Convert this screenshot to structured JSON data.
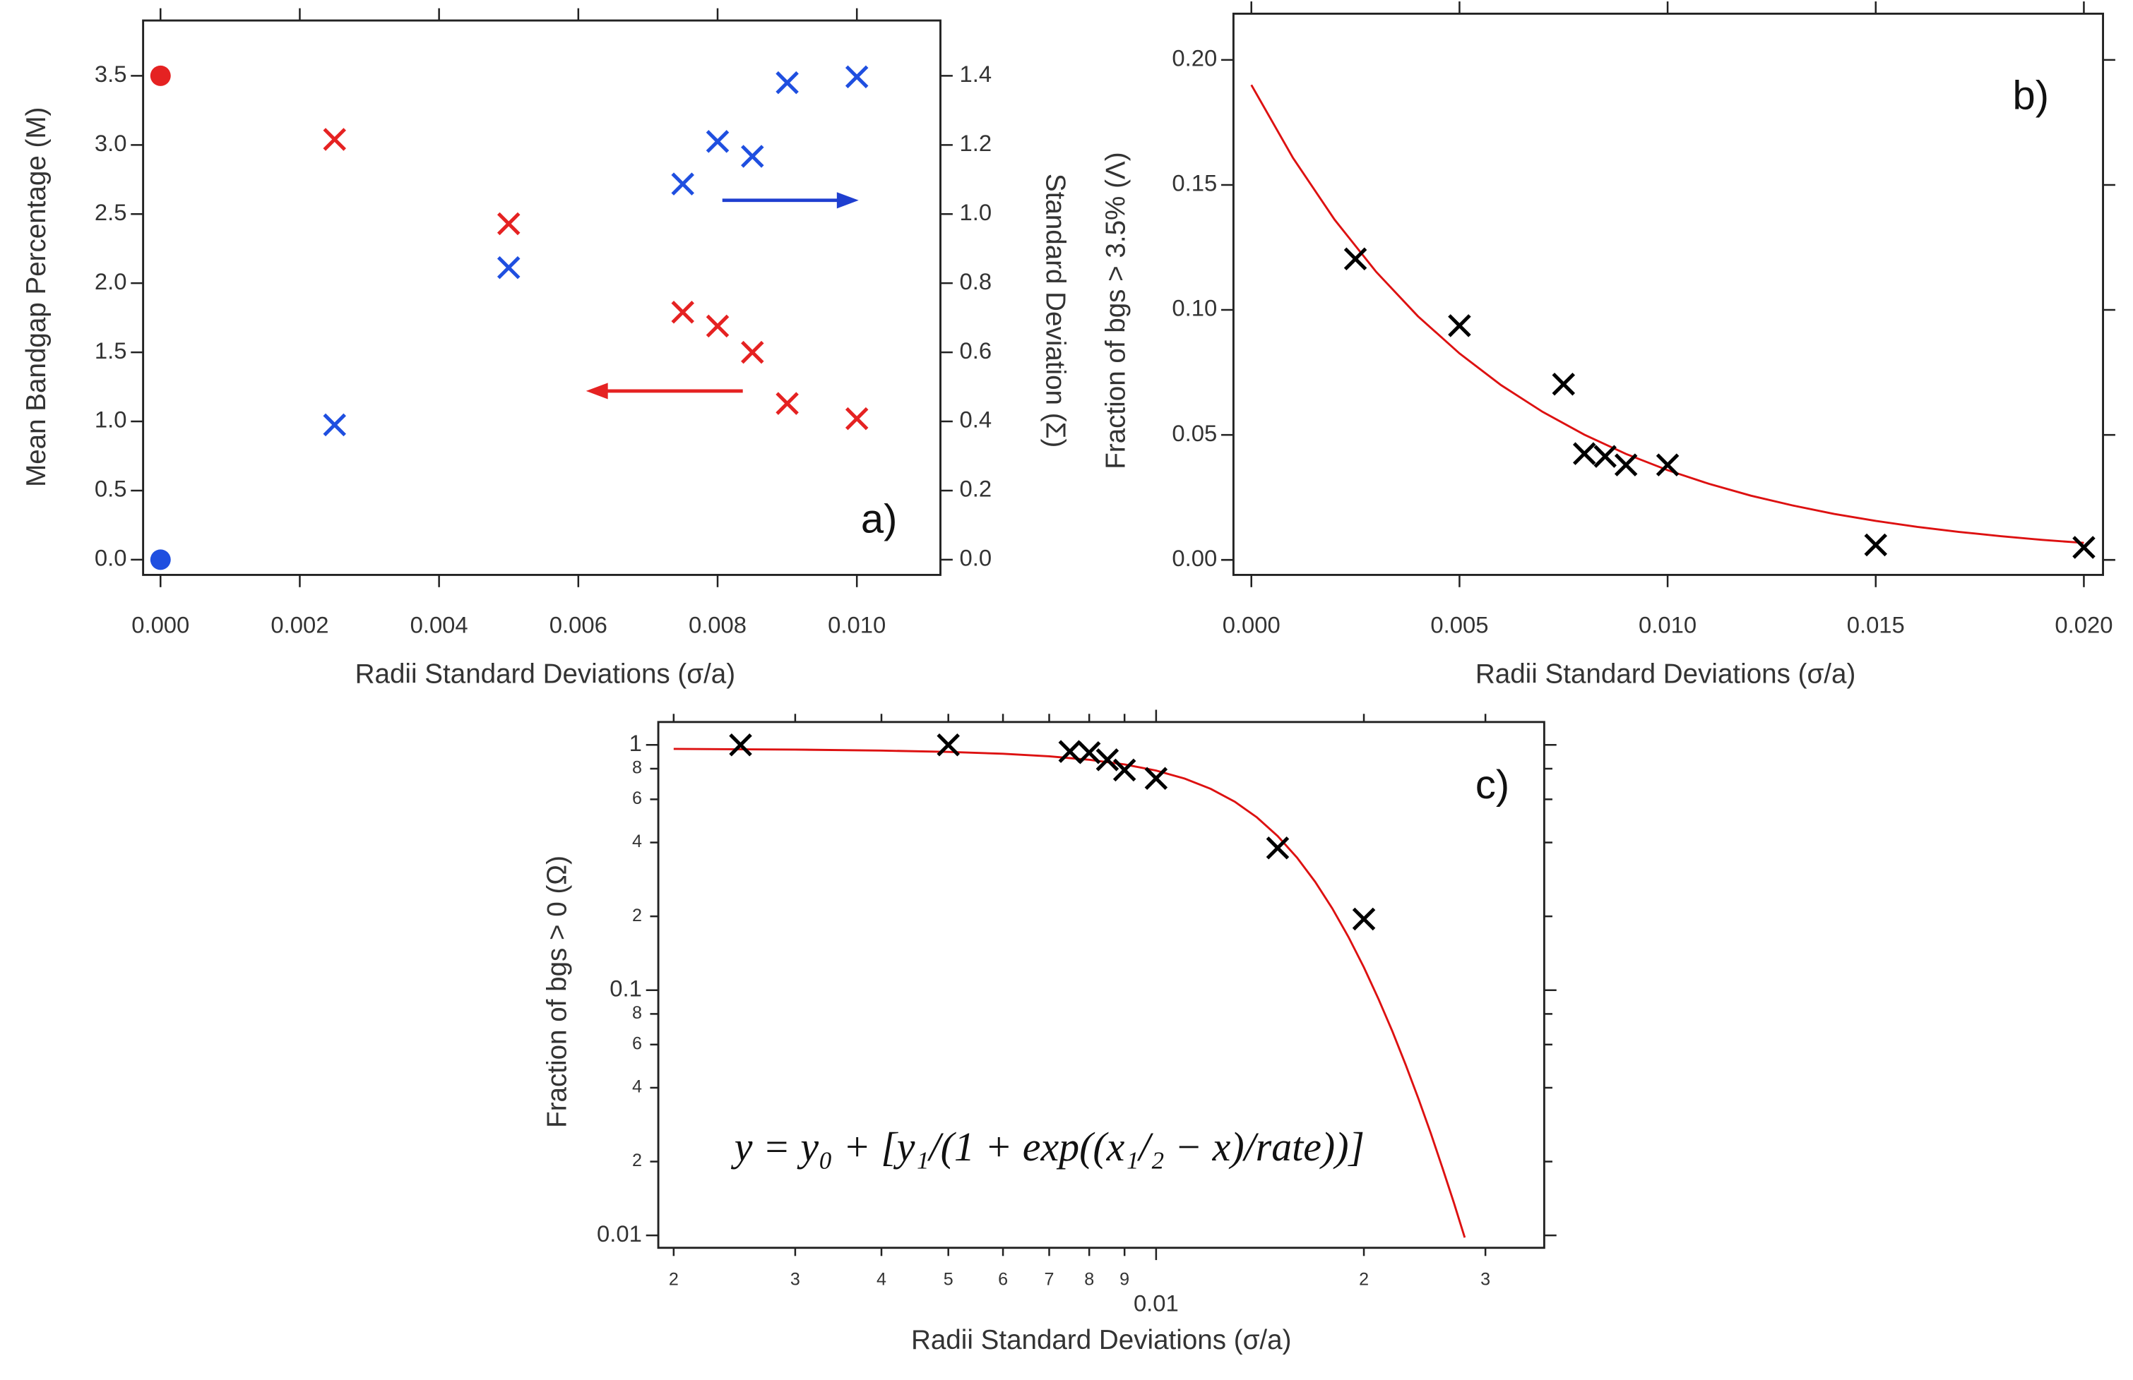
{
  "chart_data": [
    {
      "type": "scatter",
      "panel_label": "a)",
      "xlabel": "Radii Standard Deviations (σ/a)",
      "ylabel": "Mean Bandgap Percentage (M)",
      "y2label": "Standard Deviation (Σ)",
      "xlim": [
        -0.00025,
        0.0112
      ],
      "ylim": [
        -0.11,
        3.9
      ],
      "y2lim": [
        -0.044,
        1.56
      ],
      "xticks": [
        {
          "value": 0,
          "label": "0.000"
        },
        {
          "value": 0.002,
          "label": "0.002"
        },
        {
          "value": 0.004,
          "label": "0.004"
        },
        {
          "value": 0.006,
          "label": "0.006"
        },
        {
          "value": 0.008,
          "label": "0.008"
        },
        {
          "value": 0.01,
          "label": "0.010"
        }
      ],
      "yticks": [
        {
          "value": 0,
          "label": "0.0"
        },
        0.5,
        {
          "value": 1,
          "label": "1.0"
        },
        1.5,
        {
          "value": 2,
          "label": "2.0"
        },
        2.5,
        {
          "value": 3,
          "label": "3.0"
        },
        3.5
      ],
      "y2ticks": [
        {
          "value": 0,
          "label": "0.0"
        },
        0.2,
        0.4,
        0.6,
        0.8,
        {
          "value": 1,
          "label": "1.0"
        },
        1.2,
        1.4
      ],
      "series": [
        {
          "color": "#e52222",
          "marker": "x",
          "x": [
            0.0025,
            0.005,
            0.0075,
            0.008,
            0.0085,
            0.009,
            0.01
          ],
          "values": [
            3.04,
            2.43,
            1.79,
            1.69,
            1.5,
            1.13,
            1.02
          ]
        },
        {
          "color": "#e52222",
          "marker": "circle",
          "x": [
            0
          ],
          "values": [
            3.5
          ]
        },
        {
          "color": "#1f4fe0",
          "marker": "x",
          "axis": "y2",
          "x": [
            0.0025,
            0.005,
            0.0075,
            0.008,
            0.0085,
            0.009,
            0.01
          ],
          "values": [
            0.39,
            0.845,
            1.087,
            1.21,
            1.167,
            1.38,
            1.397
          ]
        },
        {
          "color": "#1f4fe0",
          "marker": "circle",
          "axis": "y2",
          "x": [
            0
          ],
          "values": [
            0
          ]
        }
      ]
    },
    {
      "type": "scatter",
      "panel_label": "b)",
      "xlabel": "Radii Standard Deviations (σ/a)",
      "ylabel": "Fraction of bgs > 3.5% (Λ)",
      "xlim": [
        -0.00043,
        0.02046
      ],
      "ylim": [
        -0.006,
        0.2185
      ],
      "xticks": [
        {
          "value": 0,
          "label": "0.000"
        },
        {
          "value": 0.005,
          "label": "0.005"
        },
        {
          "value": 0.01,
          "label": "0.010"
        },
        {
          "value": 0.015,
          "label": "0.015"
        },
        {
          "value": 0.02,
          "label": "0.020"
        }
      ],
      "yticks": [
        {
          "value": 0,
          "label": "0.00"
        },
        {
          "value": 0.05,
          "label": "0.05"
        },
        {
          "value": 0.1,
          "label": "0.10"
        },
        {
          "value": 0.15,
          "label": "0.15"
        },
        {
          "value": 0.2,
          "label": "0.20"
        }
      ],
      "series": [
        {
          "color": "#dd1111",
          "marker": "line",
          "x": [
            0,
            0.001,
            0.002,
            0.003,
            0.004,
            0.005,
            0.006,
            0.007,
            0.008,
            0.009,
            0.01,
            0.011,
            0.012,
            0.013,
            0.014,
            0.015,
            0.016,
            0.017,
            0.018,
            0.019,
            0.02
          ],
          "values": [
            0.19,
            0.1608,
            0.1361,
            0.1152,
            0.0975,
            0.0826,
            0.0699,
            0.0592,
            0.0501,
            0.0424,
            0.0359,
            0.0304,
            0.0257,
            0.0218,
            0.0184,
            0.0156,
            0.0132,
            0.0112,
            0.0095,
            0.008,
            0.0068
          ]
        },
        {
          "color": "#000000",
          "marker": "x",
          "x": [
            0.0025,
            0.005,
            0.0075,
            0.008,
            0.0085,
            0.009,
            0.01,
            0.015,
            0.02
          ],
          "values": [
            0.1204,
            0.0937,
            0.0703,
            0.0425,
            0.0414,
            0.038,
            0.038,
            0.006,
            0.005
          ]
        }
      ]
    },
    {
      "type": "scatter",
      "panel_label": "c)",
      "xscale": "log",
      "yscale": "log",
      "xlabel": "Radii Standard Deviations (σ/a)",
      "ylabel": "Fraction of bgs > 0 (Ω)",
      "equation": "y = y₀ + [y₁/(1 + exp((x₁/₂ − x)/rate))]",
      "xlim": [
        0.0019,
        0.0365
      ],
      "ylim": [
        0.0089,
        1.24
      ],
      "xticks": [
        {
          "value": 0.002,
          "label": "2"
        },
        {
          "value": 0.003,
          "label": "3"
        },
        {
          "value": 0.004,
          "label": "4"
        },
        {
          "value": 0.005,
          "label": "5"
        },
        {
          "value": 0.006,
          "label": "6"
        },
        {
          "value": 0.007,
          "label": "7"
        },
        {
          "value": 0.008,
          "label": "8"
        },
        {
          "value": 0.009,
          "label": "9"
        },
        0.01,
        {
          "value": 0.02,
          "label": "2"
        },
        {
          "value": 0.03,
          "label": "3"
        }
      ],
      "yticks": [
        0.01,
        {
          "value": 0.02,
          "label": "2"
        },
        {
          "value": 0.04,
          "label": "4"
        },
        {
          "value": 0.06,
          "label": "6"
        },
        {
          "value": 0.08,
          "label": "8"
        },
        0.1,
        {
          "value": 0.2,
          "label": "2"
        },
        {
          "value": 0.4,
          "label": "4"
        },
        {
          "value": 0.6,
          "label": "6"
        },
        {
          "value": 0.8,
          "label": "8"
        },
        1
      ],
      "series": [
        {
          "color": "#dd1111",
          "marker": "line",
          "x": [
            0.002,
            0.003,
            0.004,
            0.005,
            0.006,
            0.007,
            0.008,
            0.009,
            0.01,
            0.011,
            0.012,
            0.013,
            0.014,
            0.015,
            0.016,
            0.017,
            0.018,
            0.019,
            0.02,
            0.021,
            0.022,
            0.023,
            0.024,
            0.025,
            0.026,
            0.027,
            0.028
          ],
          "values": [
            0.9635,
            0.9571,
            0.9483,
            0.9364,
            0.9202,
            0.8985,
            0.8699,
            0.8328,
            0.7861,
            0.729,
            0.662,
            0.5867,
            0.5063,
            0.425,
            0.3473,
            0.2766,
            0.2154,
            0.1646,
            0.1239,
            0.092,
            0.0678,
            0.0495,
            0.036,
            0.0261,
            0.0188,
            0.0136,
            0.0098
          ]
        },
        {
          "color": "#000000",
          "marker": "x",
          "x": [
            0.0025,
            0.005,
            0.0075,
            0.008,
            0.0085,
            0.009,
            0.01,
            0.015,
            0.02
          ],
          "values": [
            1.0,
            1.0,
            0.94,
            0.93,
            0.87,
            0.79,
            0.73,
            0.38,
            0.195
          ]
        }
      ]
    }
  ]
}
